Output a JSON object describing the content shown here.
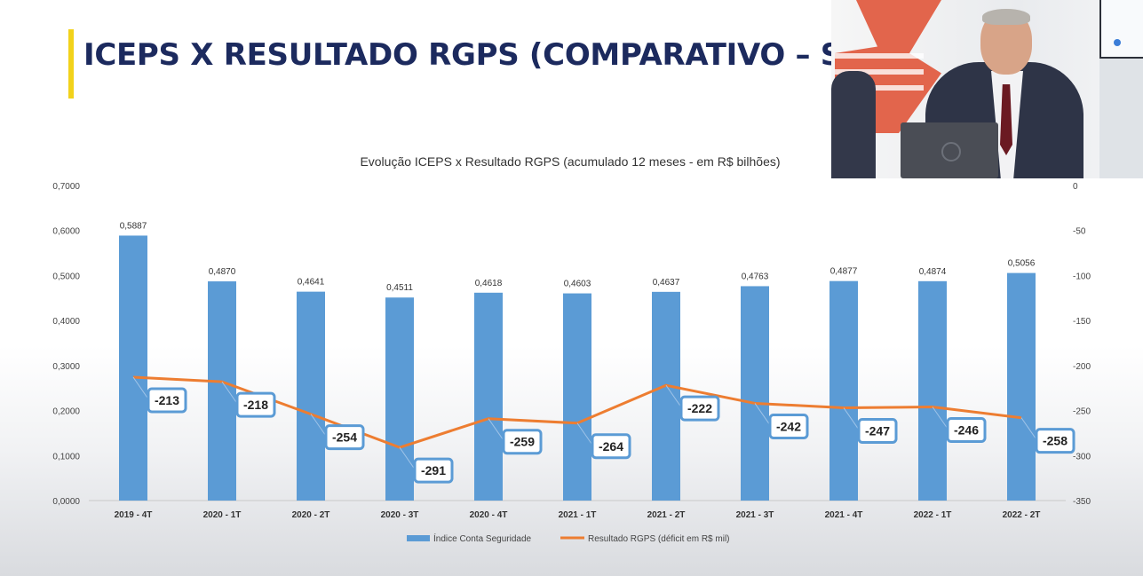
{
  "slide": {
    "title": "ICEPS X RESULTADO RGPS (COMPARATIVO – SÉ"
  },
  "colors": {
    "title": "#1c2a5e",
    "accent": "#f2d21b",
    "bar": "#5b9bd5",
    "line": "#ed7d31"
  },
  "chart_data": {
    "type": "bar",
    "title": "Evolução ICEPS x Resultado RGPS (acumulado 12 meses - em R$ bilhões)",
    "categories": [
      "2019 - 4T",
      "2020 - 1T",
      "2020 - 2T",
      "2020 - 3T",
      "2020 - 4T",
      "2021 - 1T",
      "2021 - 2T",
      "2021 - 3T",
      "2021 - 4T",
      "2022 - 1T",
      "2022 - 2T"
    ],
    "series": [
      {
        "name": "Índice Conta Seguridade",
        "type": "bar",
        "axis": "left",
        "values": [
          0.5887,
          0.487,
          0.4641,
          0.4511,
          0.4618,
          0.4603,
          0.4637,
          0.4763,
          0.4877,
          0.4874,
          0.5056
        ],
        "labels": [
          "0,5887",
          "0,4870",
          "0,4641",
          "0,4511",
          "0,4618",
          "0,4603",
          "0,4637",
          "0,4763",
          "0,4877",
          "0,4874",
          "0,5056"
        ]
      },
      {
        "name": "Resultado RGPS (déficit em R$ mil)",
        "type": "line",
        "axis": "right",
        "values": [
          -213,
          -218,
          -254,
          -291,
          -259,
          -264,
          -222,
          -242,
          -247,
          -246,
          -258
        ],
        "labels": [
          "-213",
          "-218",
          "-254",
          "-291",
          "-259",
          "-264",
          "-222",
          "-242",
          "-247",
          "-246",
          "-258"
        ]
      }
    ],
    "y_left": {
      "range": [
        0,
        0.7
      ],
      "ticks": [
        "0,0000",
        "0,1000",
        "0,2000",
        "0,3000",
        "0,4000",
        "0,5000",
        "0,6000",
        "0,7000"
      ]
    },
    "y_right": {
      "range": [
        -350,
        0
      ],
      "ticks": [
        "0",
        "-50",
        "-100",
        "-150",
        "-200",
        "-250",
        "-300",
        "-350"
      ]
    },
    "grid": false,
    "legend_position": "bottom"
  }
}
